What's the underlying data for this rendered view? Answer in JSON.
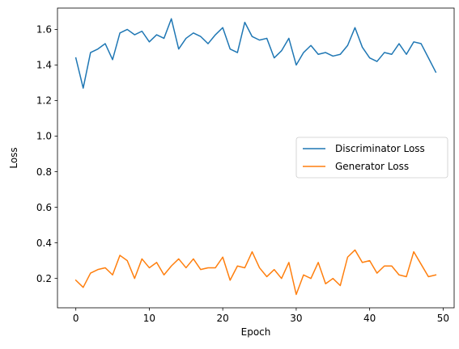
{
  "chart_data": {
    "type": "line",
    "xlabel": "Epoch",
    "ylabel": "Loss",
    "xlim": [
      -2.5,
      51.5
    ],
    "ylim": [
      0.035,
      1.72
    ],
    "x_ticks": [
      0,
      10,
      20,
      30,
      40,
      50
    ],
    "x_tick_labels": [
      "0",
      "10",
      "20",
      "30",
      "40",
      "50"
    ],
    "y_ticks": [
      0.2,
      0.4,
      0.6,
      0.8,
      1.0,
      1.2,
      1.4,
      1.6
    ],
    "y_tick_labels": [
      "0.2",
      "0.4",
      "0.6",
      "0.8",
      "1.0",
      "1.2",
      "1.4",
      "1.6"
    ],
    "grid": false,
    "legend_position": "center-right",
    "x": [
      0,
      1,
      2,
      3,
      4,
      5,
      6,
      7,
      8,
      9,
      10,
      11,
      12,
      13,
      14,
      15,
      16,
      17,
      18,
      19,
      20,
      21,
      22,
      23,
      24,
      25,
      26,
      27,
      28,
      29,
      30,
      31,
      32,
      33,
      34,
      35,
      36,
      37,
      38,
      39,
      40,
      41,
      42,
      43,
      44,
      45,
      46,
      47,
      48,
      49
    ],
    "series": [
      {
        "name": "Discriminator Loss",
        "color": "#1f77b4",
        "values": [
          1.44,
          1.27,
          1.47,
          1.49,
          1.52,
          1.43,
          1.58,
          1.6,
          1.57,
          1.59,
          1.53,
          1.57,
          1.55,
          1.66,
          1.49,
          1.55,
          1.58,
          1.56,
          1.52,
          1.57,
          1.61,
          1.49,
          1.47,
          1.64,
          1.56,
          1.54,
          1.55,
          1.44,
          1.48,
          1.55,
          1.4,
          1.47,
          1.51,
          1.46,
          1.47,
          1.45,
          1.46,
          1.51,
          1.61,
          1.5,
          1.44,
          1.42,
          1.47,
          1.46,
          1.52,
          1.46,
          1.53,
          1.52,
          1.44,
          1.36
        ]
      },
      {
        "name": "Generator Loss",
        "color": "#ff7f0e",
        "values": [
          0.19,
          0.15,
          0.23,
          0.25,
          0.26,
          0.22,
          0.33,
          0.3,
          0.2,
          0.31,
          0.26,
          0.29,
          0.22,
          0.27,
          0.31,
          0.26,
          0.31,
          0.25,
          0.26,
          0.26,
          0.32,
          0.19,
          0.27,
          0.26,
          0.35,
          0.26,
          0.21,
          0.25,
          0.2,
          0.29,
          0.11,
          0.22,
          0.2,
          0.29,
          0.17,
          0.2,
          0.16,
          0.32,
          0.36,
          0.29,
          0.3,
          0.23,
          0.27,
          0.27,
          0.22,
          0.21,
          0.35,
          0.28,
          0.21,
          0.22
        ]
      }
    ]
  }
}
